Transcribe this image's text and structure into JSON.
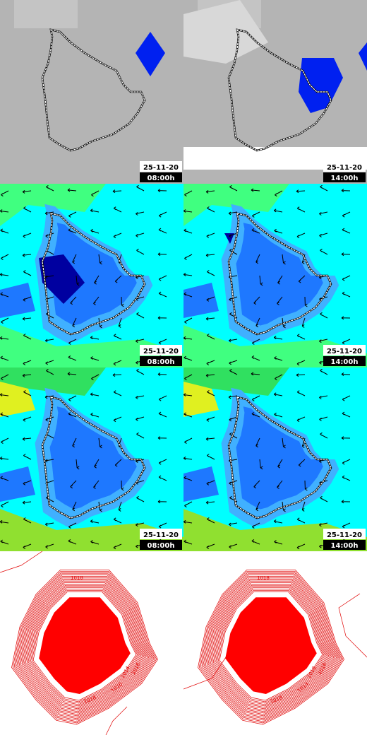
{
  "panels": [
    {
      "date": "25-11-20",
      "time": "08:00h"
    },
    {
      "date": "25-11-20",
      "time": "14:00h"
    },
    {
      "date": "25-11-20",
      "time": "08:00h"
    },
    {
      "date": "25-11-20",
      "time": "14:00h"
    },
    {
      "date": "25-11-20",
      "time": "08:00h"
    },
    {
      "date": "25-11-20",
      "time": "14:00h"
    },
    {
      "contour_labels": [
        "1014",
        "1016",
        "1018",
        "1016",
        "1018"
      ]
    },
    {
      "contour_labels": [
        "1018",
        "1016",
        "1018",
        "1014",
        "1018"
      ]
    }
  ]
}
